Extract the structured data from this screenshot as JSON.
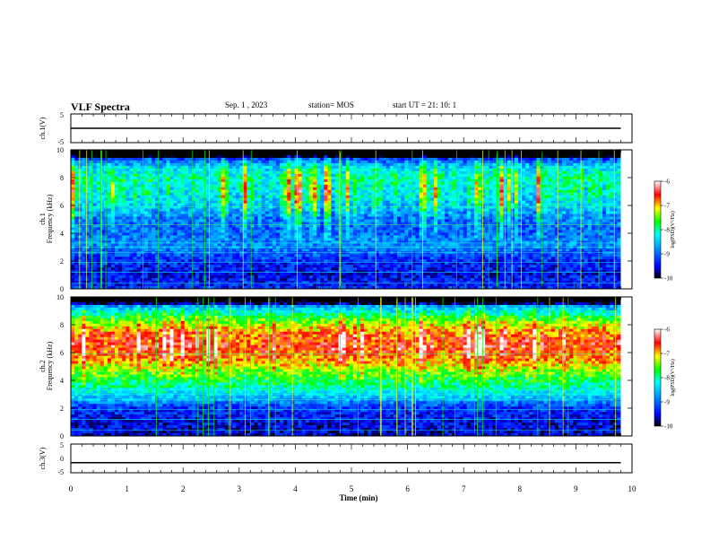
{
  "header": {
    "title": "VLF Spectra",
    "date": "Sep. 1 , 2023",
    "station": "station= MOS",
    "start_ut": "start UT =  21: 10: 1"
  },
  "chart_data": [
    {
      "type": "line",
      "panel": "ch1-waveform",
      "ylabel": "ch.1(V)",
      "ylim": [
        -5,
        5
      ],
      "yticks": [
        "5",
        "-5"
      ],
      "x": [
        0,
        9.8
      ],
      "y": [
        0,
        0
      ],
      "xlim": [
        0,
        10
      ]
    },
    {
      "type": "heatmap",
      "panel": "ch1-spectrogram",
      "ylabel": "ch.1\nFrequency (kHz)",
      "ylim": [
        0,
        10
      ],
      "yticks": [
        "0",
        "2",
        "4",
        "6",
        "8",
        "10"
      ],
      "xlim": [
        0,
        9.8
      ],
      "colorbar": {
        "label": "log(PSD)(V²/Hz)",
        "ticks": [
          "-6",
          "-7",
          "-8",
          "-9",
          "-10"
        ],
        "range": [
          -10,
          -6
        ]
      },
      "band_profile_khz": [
        {
          "f": 0,
          "level": -9.3
        },
        {
          "f": 0.5,
          "level": -9.4
        },
        {
          "f": 1,
          "level": -9.5
        },
        {
          "f": 2,
          "level": -9.3
        },
        {
          "f": 2.8,
          "level": -9.0
        },
        {
          "f": 3.2,
          "level": -8.8
        },
        {
          "f": 4,
          "level": -9.1
        },
        {
          "f": 5,
          "level": -9.1
        },
        {
          "f": 6,
          "level": -8.7
        },
        {
          "f": 7,
          "level": -8.5
        },
        {
          "f": 8,
          "level": -8.3
        },
        {
          "f": 8.8,
          "level": -8.6
        },
        {
          "f": 9.5,
          "level": -9.5
        },
        {
          "f": 10,
          "level": -10
        }
      ]
    },
    {
      "type": "heatmap",
      "panel": "ch2-spectrogram",
      "ylabel": "ch.2\nFrequency (kHz)",
      "ylim": [
        0,
        10
      ],
      "yticks": [
        "0",
        "2",
        "4",
        "6",
        "8",
        "10"
      ],
      "xlim": [
        0,
        9.8
      ],
      "colorbar": {
        "label": "log(PSD)(V²/Hz)",
        "ticks": [
          "-6",
          "-7",
          "-8",
          "-9",
          "-10"
        ],
        "range": [
          -10,
          -6
        ]
      },
      "band_profile_khz": [
        {
          "f": 0,
          "level": -9.6
        },
        {
          "f": 1,
          "level": -9.5
        },
        {
          "f": 2,
          "level": -9.3
        },
        {
          "f": 2.8,
          "level": -8.5
        },
        {
          "f": 3.5,
          "level": -8.1
        },
        {
          "f": 4.5,
          "level": -7.6
        },
        {
          "f": 5.5,
          "level": -7.0
        },
        {
          "f": 6.5,
          "level": -6.7
        },
        {
          "f": 7.5,
          "level": -7.0
        },
        {
          "f": 8.5,
          "level": -7.8
        },
        {
          "f": 9.2,
          "level": -8.6
        },
        {
          "f": 10,
          "level": -9.8
        }
      ]
    },
    {
      "type": "line",
      "panel": "ch3-waveform",
      "ylabel": "ch.3(V)",
      "ylim": [
        -5,
        5
      ],
      "yticks": [
        "5",
        "0",
        "-5"
      ],
      "x": [
        0,
        9.8
      ],
      "y": [
        -1.5,
        -1.5
      ],
      "xlim": [
        0,
        10
      ],
      "xlabel": "Time (min)",
      "xticks": [
        "0",
        "1",
        "2",
        "3",
        "4",
        "5",
        "6",
        "7",
        "8",
        "9",
        "10"
      ]
    }
  ],
  "colors": {
    "colormap": [
      "#000000",
      "#0000ff",
      "#00ffff",
      "#00ff00",
      "#ffff00",
      "#ff0000",
      "#ffffff"
    ]
  }
}
